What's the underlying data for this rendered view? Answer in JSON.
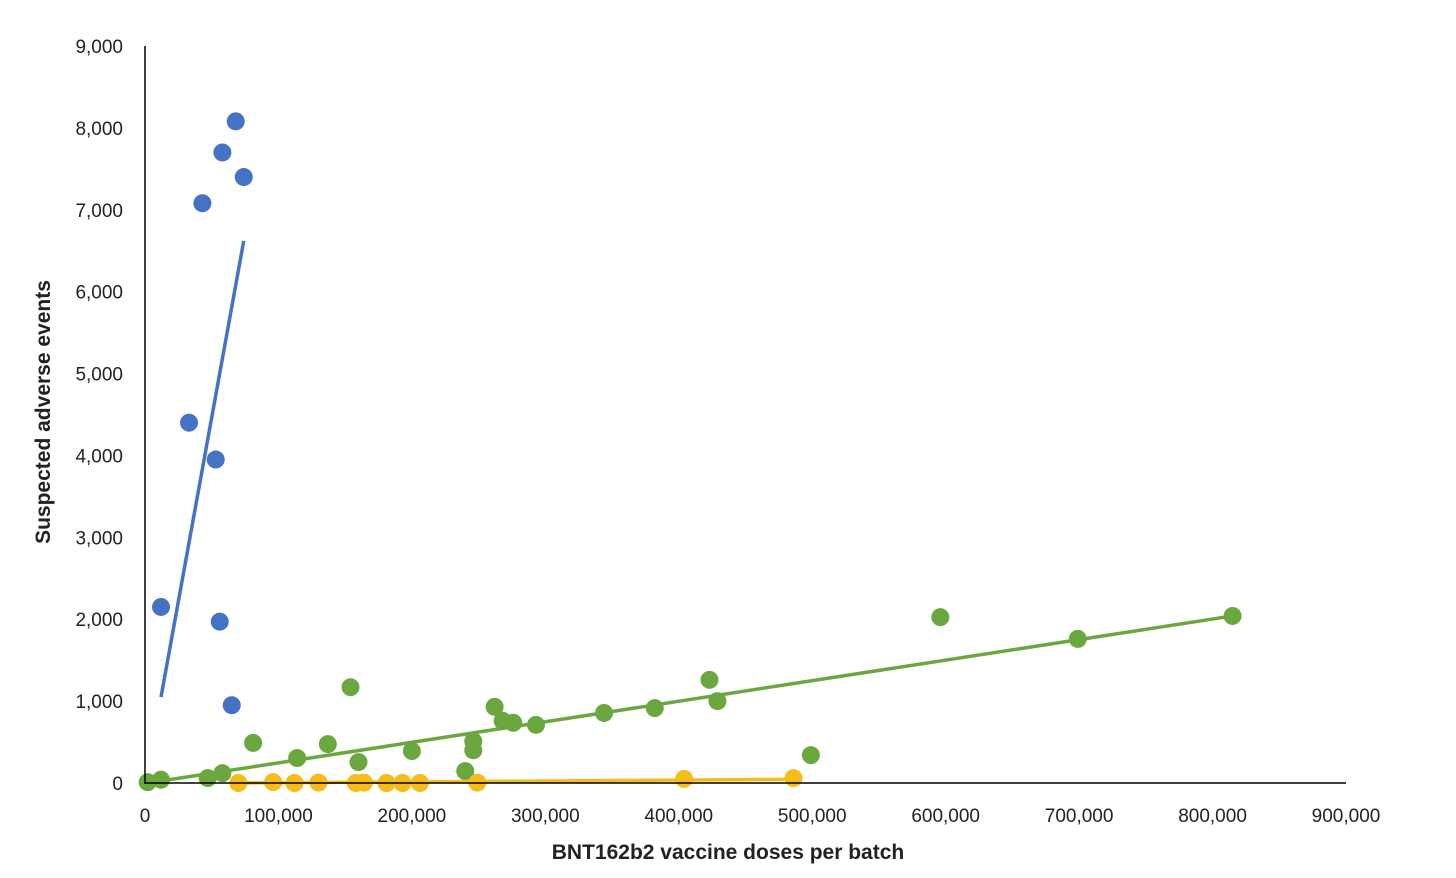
{
  "chart_data": {
    "type": "scatter",
    "title": "",
    "xlabel": "BNT162b2 vaccine doses per batch",
    "ylabel": "Suspected adverse events",
    "xlim": [
      0,
      900000
    ],
    "ylim": [
      0,
      9000
    ],
    "xticks": [
      "0",
      "100,000",
      "200,000",
      "300,000",
      "400,000",
      "500,000",
      "600,000",
      "700,000",
      "800,000",
      "900,000"
    ],
    "yticks": [
      "0",
      "1,000",
      "2,000",
      "3,000",
      "4,000",
      "5,000",
      "6,000",
      "7,000",
      "8,000",
      "9,000"
    ],
    "grid": false,
    "legend": "none",
    "series": [
      {
        "color": "#4472c4",
        "points": [
          [
            12000,
            2150
          ],
          [
            33000,
            4400
          ],
          [
            43000,
            7080
          ],
          [
            53000,
            3950
          ],
          [
            56000,
            1970
          ],
          [
            58000,
            7700
          ],
          [
            65000,
            950
          ],
          [
            68000,
            8080
          ],
          [
            74000,
            7400
          ]
        ],
        "trendline": [
          [
            12000,
            1050
          ],
          [
            74000,
            6620
          ]
        ]
      },
      {
        "color": "#6aa83f",
        "points": [
          [
            2000,
            10
          ],
          [
            12000,
            40
          ],
          [
            47000,
            60
          ],
          [
            58000,
            120
          ],
          [
            81000,
            490
          ],
          [
            114000,
            305
          ],
          [
            137000,
            475
          ],
          [
            154000,
            1170
          ],
          [
            160000,
            255
          ],
          [
            200000,
            390
          ],
          [
            240000,
            145
          ],
          [
            246000,
            400
          ],
          [
            246000,
            510
          ],
          [
            262000,
            930
          ],
          [
            268000,
            760
          ],
          [
            276000,
            735
          ],
          [
            293000,
            710
          ],
          [
            344000,
            855
          ],
          [
            382000,
            915
          ],
          [
            423000,
            1260
          ],
          [
            429000,
            1000
          ],
          [
            499000,
            340
          ],
          [
            596000,
            2025
          ],
          [
            699000,
            1760
          ],
          [
            815000,
            2040
          ]
        ],
        "trendline": [
          [
            2000,
            0
          ],
          [
            815000,
            2040
          ]
        ]
      },
      {
        "color": "#f5bc1c",
        "points": [
          [
            70000,
            0
          ],
          [
            96000,
            10
          ],
          [
            112000,
            0
          ],
          [
            130000,
            5
          ],
          [
            158000,
            0
          ],
          [
            164000,
            5
          ],
          [
            181000,
            0
          ],
          [
            193000,
            0
          ],
          [
            206000,
            0
          ],
          [
            249000,
            5
          ],
          [
            404000,
            50
          ],
          [
            486000,
            60
          ]
        ],
        "trendline": [
          [
            70000,
            0
          ],
          [
            486000,
            45
          ]
        ]
      }
    ]
  }
}
